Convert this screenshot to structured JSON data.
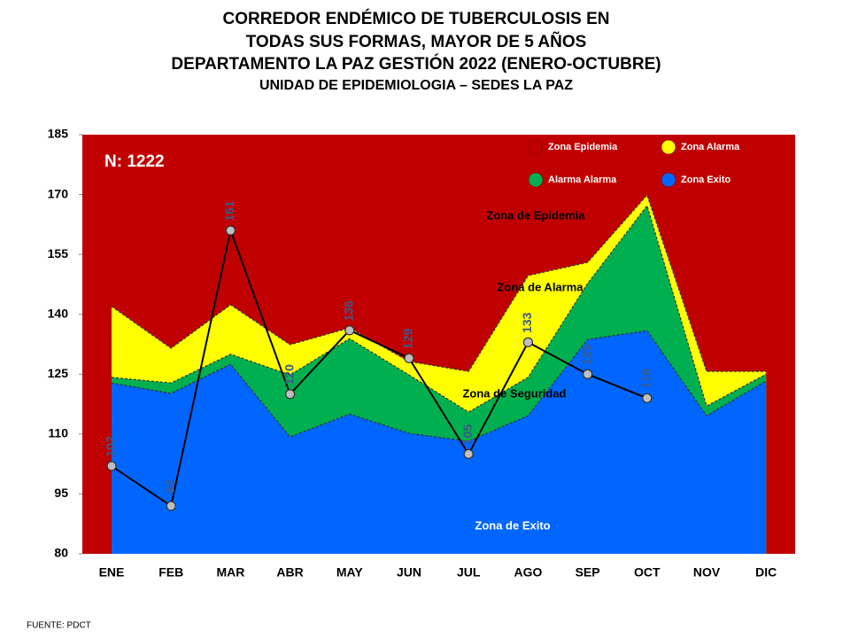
{
  "chart_data": {
    "type": "area",
    "title": [
      "CORREDOR ENDÉMICO DE TUBERCULOSIS EN",
      "TODAS SUS FORMAS, MAYOR DE 5 AÑOS",
      "DEPARTAMENTO  LA PAZ GESTIÓN 2022 (ENERO-OCTUBRE)"
    ],
    "subtitle": "UNIDAD DE EPIDEMIOLOGIA – SEDES LA PAZ",
    "annotation": "N: 1222",
    "zone_labels": [
      "Zona de Epidemia",
      "Zona de Alarma",
      "Zona de Seguridad",
      "Zona de Exito"
    ],
    "source": "FUENTE:   PDCT",
    "categories": [
      "ENE",
      "FEB",
      "MAR",
      "ABR",
      "MAY",
      "JUN",
      "JUL",
      "AGO",
      "SEP",
      "OCT",
      "NOV",
      "DIC"
    ],
    "ylim": [
      80,
      185
    ],
    "yticks": [
      80,
      95,
      110,
      125,
      140,
      155,
      170,
      185
    ],
    "epidemic_zone": {
      "name": "Zona Epidemia",
      "color": "#c00000"
    },
    "series": [
      {
        "name": "Zona  Alarma",
        "color": "#ffff00",
        "values": [
          142,
          131.5,
          142.4,
          132.4,
          136.6,
          128.2,
          125.7,
          149.7,
          153,
          169.9,
          125.7,
          125.7
        ]
      },
      {
        "name": "Alarma  Alarma",
        "color": "#00b050",
        "values": [
          124.2,
          122.8,
          130,
          124.8,
          133.9,
          124.8,
          115.5,
          124.2,
          147.7,
          167.2,
          117,
          125
        ]
      },
      {
        "name": "Zona Exito",
        "color": "#0066ff",
        "values": [
          122.8,
          120.2,
          127.5,
          109.3,
          115,
          110.2,
          108.2,
          114.6,
          133.7,
          135.9,
          114.6,
          123.3
        ]
      },
      {
        "type": "line",
        "color": "#000000",
        "values": [
          102,
          92,
          161,
          120,
          136,
          129,
          105,
          133,
          125,
          119,
          null,
          null
        ]
      }
    ]
  }
}
